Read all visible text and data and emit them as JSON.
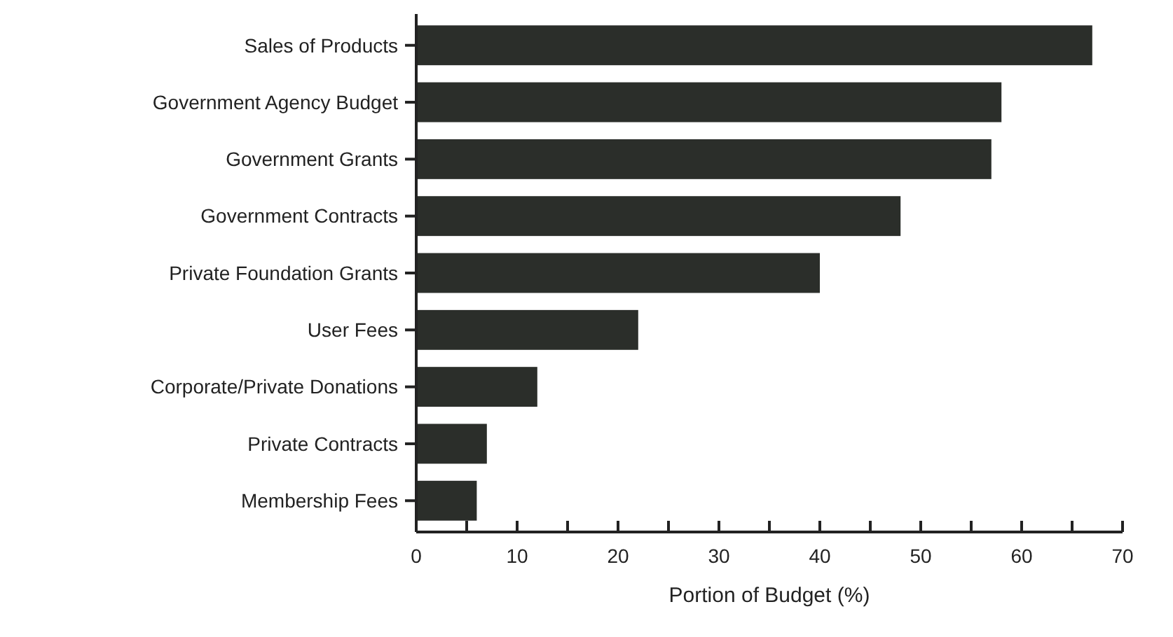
{
  "chart_data": {
    "type": "bar",
    "orientation": "horizontal",
    "xlabel": "Portion of Budget (%)",
    "categories": [
      "Sales of Products",
      "Government Agency Budget",
      "Government Grants",
      "Government Contracts",
      "Private Foundation Grants",
      "User Fees",
      "Corporate/Private Donations",
      "Private Contracts",
      "Membership Fees"
    ],
    "values": [
      67,
      58,
      57,
      48,
      40,
      22,
      12,
      7,
      6
    ],
    "color": "#2b2e2a",
    "xlim": [
      0,
      70
    ],
    "xticks": [
      0,
      {
        "value": 5,
        "label": null
      },
      10,
      {
        "value": 15,
        "label": null
      },
      20,
      {
        "value": 25,
        "label": null
      },
      30,
      {
        "value": 35,
        "label": null
      },
      40,
      {
        "value": 45,
        "label": null
      },
      50,
      {
        "value": 55,
        "label": null
      },
      60,
      {
        "value": 65,
        "label": null
      },
      70
    ],
    "grid": false
  }
}
